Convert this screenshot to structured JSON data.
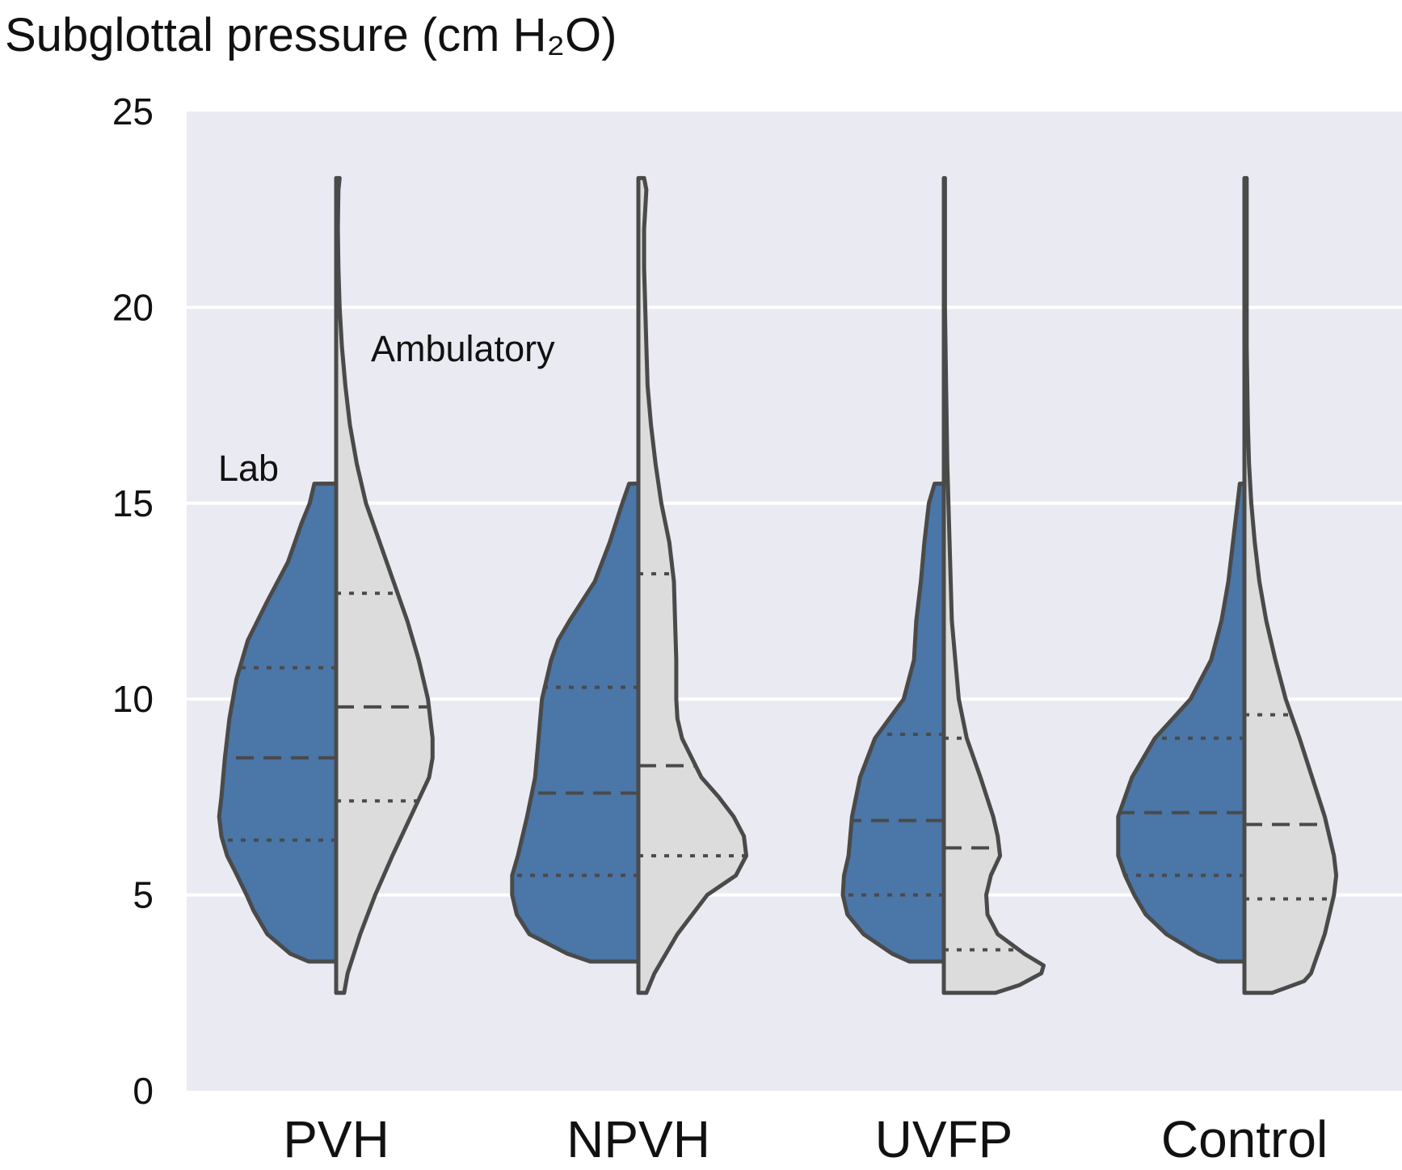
{
  "chart_data": {
    "type": "violin",
    "title": "Subglottal pressure (cm H₂O)",
    "ylim": [
      0,
      25
    ],
    "yticks": [
      0,
      5,
      10,
      15,
      20,
      25
    ],
    "grid": true,
    "categories": [
      "PVH",
      "NPVH",
      "UVFP",
      "Control"
    ],
    "annotations": {
      "left_half": "Lab",
      "right_half": "Ambulatory"
    },
    "colors": {
      "lab": "#4a76a8",
      "ambulatory": "#dcdcdc",
      "outline": "#4a4a4a",
      "background": "#eaeaf2",
      "grid": "#ffffff"
    },
    "series": [
      {
        "name": "Lab",
        "side": "left",
        "violins": [
          {
            "min": 3.3,
            "max": 15.5,
            "q1": 6.4,
            "median": 8.5,
            "q3": 10.8,
            "profile": [
              [
                3.3,
                0.24
              ],
              [
                3.5,
                0.4
              ],
              [
                4.0,
                0.6
              ],
              [
                4.6,
                0.72
              ],
              [
                5.0,
                0.78
              ],
              [
                5.6,
                0.88
              ],
              [
                6.0,
                0.95
              ],
              [
                6.5,
                1.0
              ],
              [
                7.0,
                1.02
              ],
              [
                7.5,
                1.0
              ],
              [
                8.5,
                0.97
              ],
              [
                9.5,
                0.93
              ],
              [
                10.5,
                0.87
              ],
              [
                11.5,
                0.77
              ],
              [
                12.5,
                0.6
              ],
              [
                13.5,
                0.42
              ],
              [
                14.5,
                0.3
              ],
              [
                15.0,
                0.23
              ],
              [
                15.5,
                0.19
              ]
            ]
          },
          {
            "min": 3.3,
            "max": 15.5,
            "q1": 5.5,
            "median": 7.6,
            "q3": 10.3,
            "profile": [
              [
                3.3,
                0.42
              ],
              [
                3.5,
                0.62
              ],
              [
                4.0,
                0.95
              ],
              [
                4.5,
                1.06
              ],
              [
                5.0,
                1.1
              ],
              [
                5.5,
                1.1
              ],
              [
                6.0,
                1.05
              ],
              [
                7.0,
                0.97
              ],
              [
                8.0,
                0.9
              ],
              [
                9.0,
                0.87
              ],
              [
                10.0,
                0.84
              ],
              [
                11.0,
                0.76
              ],
              [
                11.5,
                0.7
              ],
              [
                12.0,
                0.6
              ],
              [
                13.0,
                0.38
              ],
              [
                14.0,
                0.25
              ],
              [
                15.0,
                0.14
              ],
              [
                15.5,
                0.08
              ]
            ]
          },
          {
            "min": 3.3,
            "max": 15.5,
            "q1": 5.0,
            "median": 6.9,
            "q3": 9.1,
            "profile": [
              [
                3.3,
                0.3
              ],
              [
                3.5,
                0.45
              ],
              [
                4.0,
                0.7
              ],
              [
                4.5,
                0.84
              ],
              [
                5.0,
                0.88
              ],
              [
                5.5,
                0.87
              ],
              [
                6.0,
                0.83
              ],
              [
                7.0,
                0.8
              ],
              [
                8.0,
                0.73
              ],
              [
                9.0,
                0.6
              ],
              [
                10.0,
                0.35
              ],
              [
                11.0,
                0.26
              ],
              [
                12.0,
                0.24
              ],
              [
                13.0,
                0.2
              ],
              [
                14.0,
                0.17
              ],
              [
                15.0,
                0.13
              ],
              [
                15.5,
                0.08
              ]
            ]
          },
          {
            "min": 3.3,
            "max": 15.5,
            "q1": 5.5,
            "median": 7.1,
            "q3": 9.0,
            "profile": [
              [
                3.3,
                0.23
              ],
              [
                3.5,
                0.4
              ],
              [
                4.0,
                0.68
              ],
              [
                4.5,
                0.86
              ],
              [
                5.0,
                0.96
              ],
              [
                5.5,
                1.04
              ],
              [
                6.0,
                1.1
              ],
              [
                7.0,
                1.1
              ],
              [
                8.0,
                0.98
              ],
              [
                9.0,
                0.78
              ],
              [
                10.0,
                0.47
              ],
              [
                11.0,
                0.29
              ],
              [
                12.0,
                0.2
              ],
              [
                13.0,
                0.14
              ],
              [
                14.0,
                0.1
              ],
              [
                15.0,
                0.06
              ],
              [
                15.5,
                0.04
              ]
            ]
          }
        ]
      },
      {
        "name": "Ambulatory",
        "side": "right",
        "violins": [
          {
            "min": 2.5,
            "max": 23.3,
            "q1": 7.4,
            "median": 9.8,
            "q3": 12.7,
            "profile": [
              [
                2.5,
                0.07
              ],
              [
                3.0,
                0.1
              ],
              [
                4.0,
                0.21
              ],
              [
                5.0,
                0.34
              ],
              [
                6.0,
                0.49
              ],
              [
                7.0,
                0.65
              ],
              [
                8.0,
                0.81
              ],
              [
                8.5,
                0.84
              ],
              [
                9.0,
                0.84
              ],
              [
                10.0,
                0.8
              ],
              [
                11.0,
                0.72
              ],
              [
                12.0,
                0.62
              ],
              [
                13.0,
                0.5
              ],
              [
                14.0,
                0.38
              ],
              [
                15.0,
                0.26
              ],
              [
                16.0,
                0.18
              ],
              [
                17.0,
                0.12
              ],
              [
                18.0,
                0.08
              ],
              [
                19.0,
                0.05
              ],
              [
                20.0,
                0.03
              ],
              [
                21.0,
                0.02
              ],
              [
                22.0,
                0.015
              ],
              [
                23.0,
                0.02
              ],
              [
                23.3,
                0.03
              ]
            ]
          },
          {
            "min": 2.5,
            "max": 23.3,
            "q1": 6.0,
            "median": 8.3,
            "q3": 13.2,
            "profile": [
              [
                2.5,
                0.07
              ],
              [
                3.0,
                0.14
              ],
              [
                4.0,
                0.34
              ],
              [
                5.0,
                0.6
              ],
              [
                5.5,
                0.85
              ],
              [
                6.0,
                0.94
              ],
              [
                6.5,
                0.92
              ],
              [
                7.0,
                0.83
              ],
              [
                7.5,
                0.7
              ],
              [
                8.0,
                0.55
              ],
              [
                9.0,
                0.38
              ],
              [
                9.5,
                0.34
              ],
              [
                10.0,
                0.33
              ],
              [
                11.0,
                0.33
              ],
              [
                12.0,
                0.32
              ],
              [
                13.0,
                0.31
              ],
              [
                14.0,
                0.27
              ],
              [
                15.0,
                0.2
              ],
              [
                16.0,
                0.15
              ],
              [
                17.0,
                0.11
              ],
              [
                18.0,
                0.08
              ],
              [
                19.0,
                0.07
              ],
              [
                20.0,
                0.06
              ],
              [
                21.0,
                0.05
              ],
              [
                22.0,
                0.05
              ],
              [
                23.0,
                0.07
              ],
              [
                23.3,
                0.05
              ]
            ]
          },
          {
            "min": 2.5,
            "max": 23.3,
            "q1": 3.6,
            "median": 6.2,
            "q3": 9.0,
            "profile": [
              [
                2.5,
                0.45
              ],
              [
                2.7,
                0.66
              ],
              [
                3.0,
                0.85
              ],
              [
                3.2,
                0.87
              ],
              [
                3.5,
                0.7
              ],
              [
                4.0,
                0.47
              ],
              [
                4.5,
                0.38
              ],
              [
                5.0,
                0.37
              ],
              [
                5.5,
                0.41
              ],
              [
                6.0,
                0.49
              ],
              [
                6.5,
                0.47
              ],
              [
                7.0,
                0.43
              ],
              [
                8.0,
                0.32
              ],
              [
                9.0,
                0.2
              ],
              [
                10.0,
                0.13
              ],
              [
                11.0,
                0.1
              ],
              [
                12.0,
                0.07
              ],
              [
                14.0,
                0.05
              ],
              [
                16.0,
                0.03
              ],
              [
                18.0,
                0.02
              ],
              [
                20.0,
                0.01
              ],
              [
                23.3,
                0.01
              ]
            ]
          },
          {
            "min": 2.5,
            "max": 23.3,
            "q1": 4.9,
            "median": 6.8,
            "q3": 9.6,
            "profile": [
              [
                2.5,
                0.24
              ],
              [
                2.8,
                0.52
              ],
              [
                3.0,
                0.58
              ],
              [
                4.0,
                0.7
              ],
              [
                5.0,
                0.78
              ],
              [
                5.5,
                0.8
              ],
              [
                6.0,
                0.78
              ],
              [
                7.0,
                0.7
              ],
              [
                8.0,
                0.59
              ],
              [
                9.0,
                0.48
              ],
              [
                10.0,
                0.36
              ],
              [
                11.0,
                0.27
              ],
              [
                12.0,
                0.19
              ],
              [
                13.0,
                0.13
              ],
              [
                14.0,
                0.09
              ],
              [
                15.0,
                0.06
              ],
              [
                16.0,
                0.04
              ],
              [
                17.0,
                0.03
              ],
              [
                19.0,
                0.02
              ],
              [
                21.0,
                0.02
              ],
              [
                23.3,
                0.02
              ]
            ]
          }
        ]
      }
    ]
  }
}
